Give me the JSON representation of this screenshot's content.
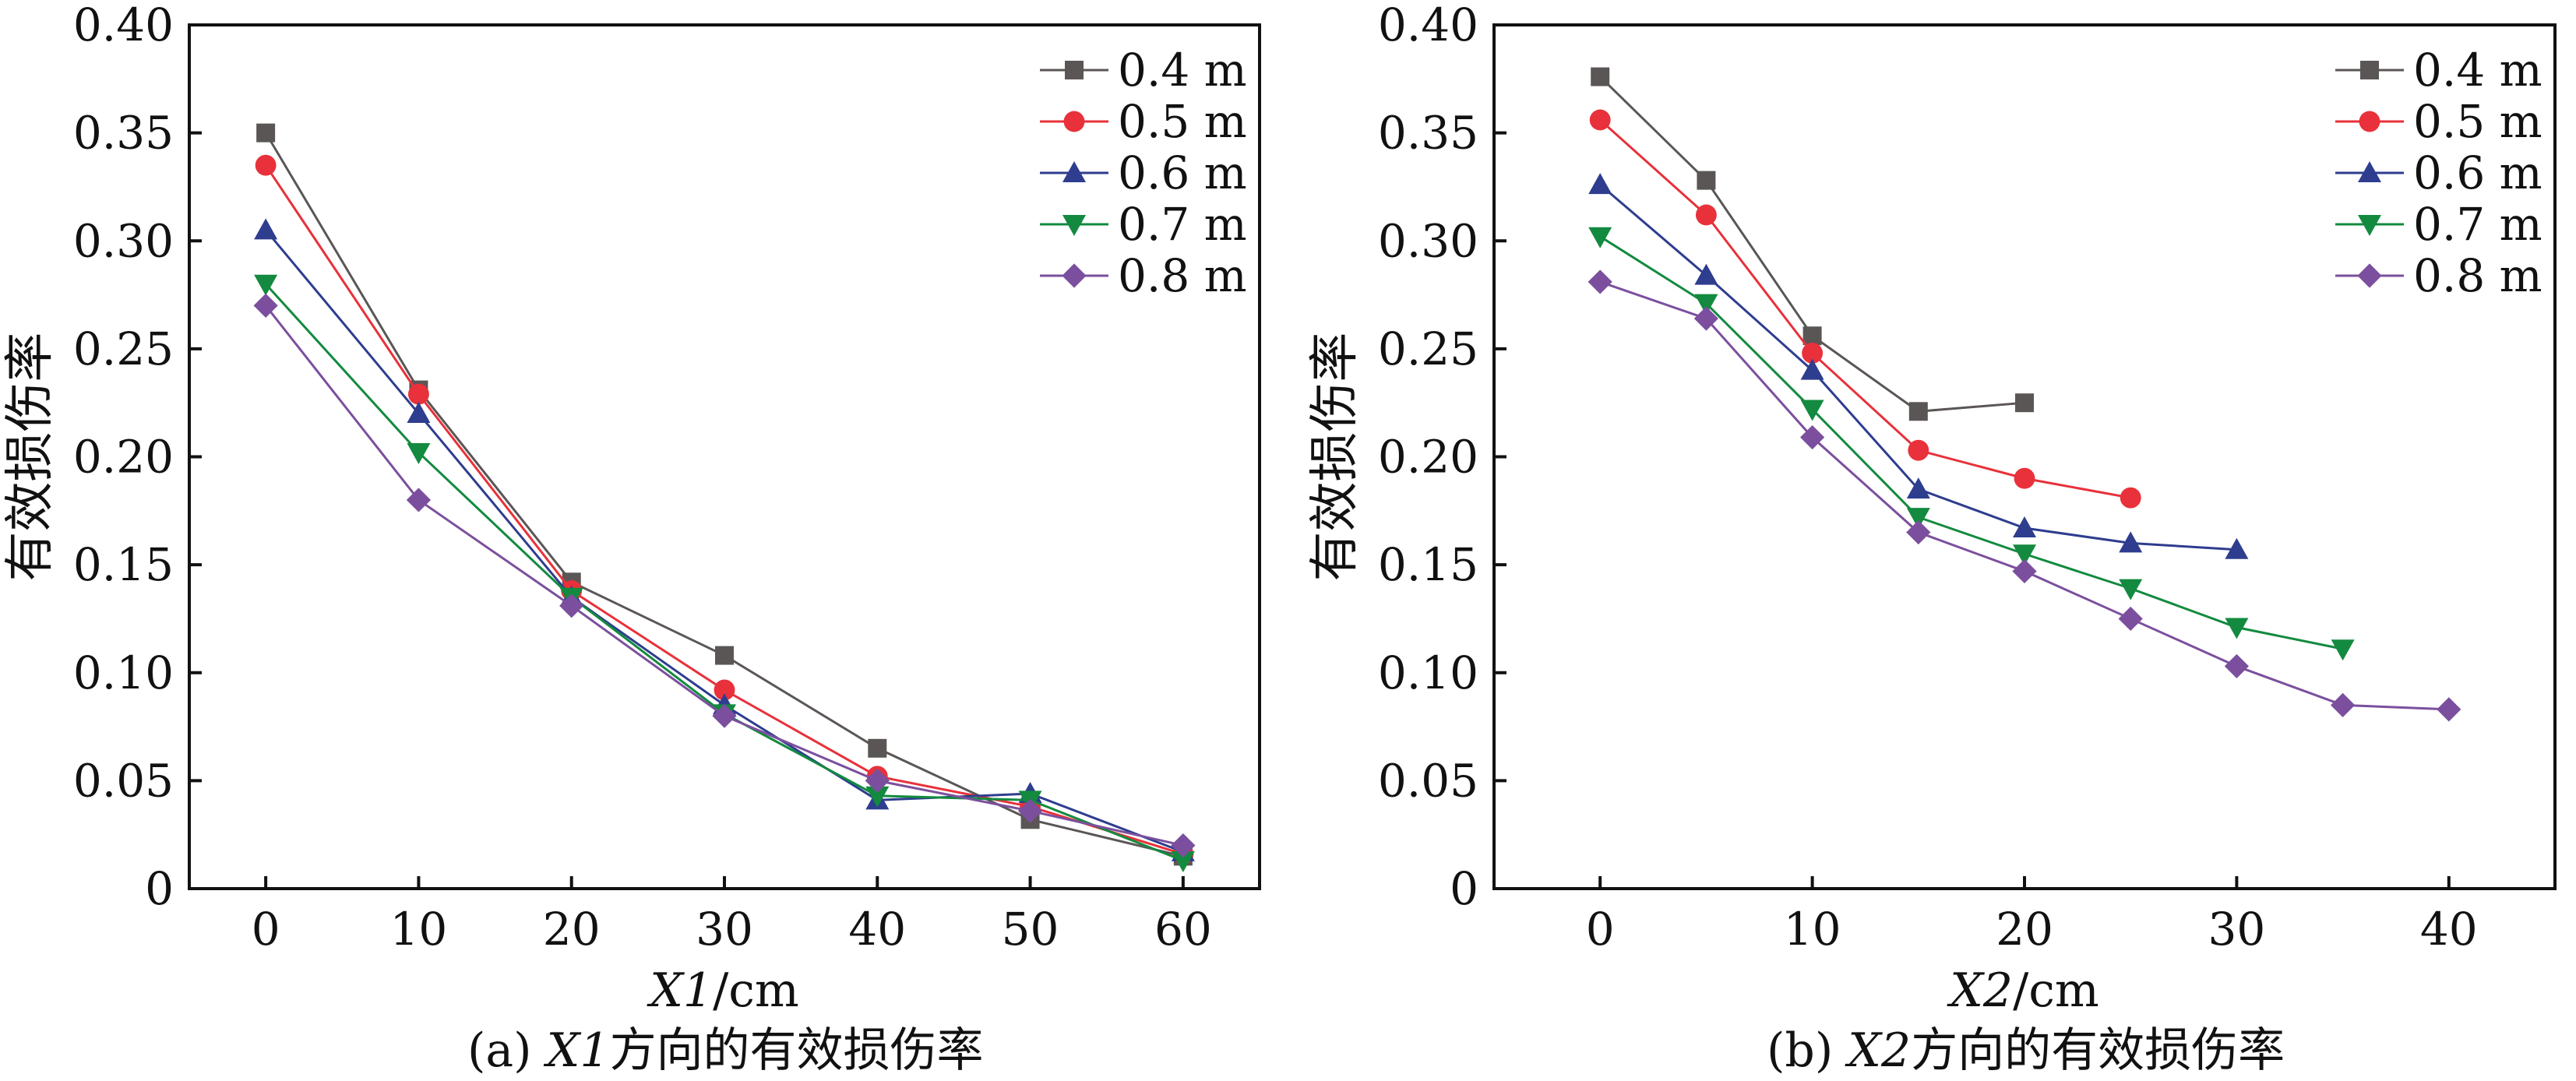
{
  "chart_data": [
    {
      "type": "line",
      "panel": "a",
      "xlabel_var": "X1",
      "xlabel_unit": "/cm",
      "ylabel": "有效损伤率",
      "xlim": [
        -5,
        65
      ],
      "ylim": [
        0,
        0.4
      ],
      "xticks": [
        0,
        10,
        20,
        30,
        40,
        50,
        60
      ],
      "yticks": [
        0,
        0.05,
        0.1,
        0.15,
        0.2,
        0.25,
        0.3,
        0.35,
        0.4
      ],
      "ytick_labels": [
        "0",
        "0.05",
        "0.10",
        "0.15",
        "0.20",
        "0.25",
        "0.30",
        "0.35",
        "0.40"
      ],
      "legend_position": "top-right",
      "caption_prefix": "(a) ",
      "caption_var": "X1",
      "caption_suffix": "方向的有效损伤率",
      "series": [
        {
          "name": "0.4 m",
          "color": "#5b5656",
          "marker": "square",
          "x": [
            0,
            10,
            20,
            30,
            40,
            50,
            60
          ],
          "values": [
            0.35,
            0.231,
            0.142,
            0.108,
            0.065,
            0.032,
            0.015
          ]
        },
        {
          "name": "0.5 m",
          "color": "#e8313a",
          "marker": "circle",
          "x": [
            0,
            10,
            20,
            30,
            40,
            50,
            60
          ],
          "values": [
            0.335,
            0.229,
            0.138,
            0.092,
            0.052,
            0.038,
            0.016
          ]
        },
        {
          "name": "0.6 m",
          "color": "#2e3d8e",
          "marker": "triangle-up",
          "x": [
            0,
            10,
            20,
            30,
            40,
            50,
            60
          ],
          "values": [
            0.305,
            0.22,
            0.135,
            0.085,
            0.041,
            0.044,
            0.017
          ]
        },
        {
          "name": "0.7 m",
          "color": "#138a3f",
          "marker": "triangle-down",
          "x": [
            0,
            10,
            20,
            30,
            40,
            50,
            60
          ],
          "values": [
            0.28,
            0.202,
            0.135,
            0.081,
            0.043,
            0.041,
            0.013
          ]
        },
        {
          "name": "0.8 m",
          "color": "#7b4f9e",
          "marker": "diamond",
          "x": [
            0,
            10,
            20,
            30,
            40,
            50,
            60
          ],
          "values": [
            0.27,
            0.18,
            0.131,
            0.08,
            0.05,
            0.036,
            0.02
          ]
        }
      ]
    },
    {
      "type": "line",
      "panel": "b",
      "xlabel_var": "X2",
      "xlabel_unit": "/cm",
      "ylabel": "有效损伤率",
      "xlim": [
        -5,
        45
      ],
      "ylim": [
        0,
        0.4
      ],
      "xticks": [
        0,
        10,
        20,
        30,
        40
      ],
      "yticks": [
        0,
        0.05,
        0.1,
        0.15,
        0.2,
        0.25,
        0.3,
        0.35,
        0.4
      ],
      "ytick_labels": [
        "0",
        "0.05",
        "0.10",
        "0.15",
        "0.20",
        "0.25",
        "0.30",
        "0.35",
        "0.40"
      ],
      "legend_position": "top-right",
      "caption_prefix": "(b) ",
      "caption_var": "X2",
      "caption_suffix": "方向的有效损伤率",
      "series": [
        {
          "name": "0.4 m",
          "color": "#5b5656",
          "marker": "square",
          "x": [
            0,
            5,
            10,
            15,
            20
          ],
          "values": [
            0.376,
            0.328,
            0.256,
            0.221,
            0.225
          ]
        },
        {
          "name": "0.5 m",
          "color": "#e8313a",
          "marker": "circle",
          "x": [
            0,
            5,
            10,
            15,
            20,
            25
          ],
          "values": [
            0.356,
            0.312,
            0.248,
            0.203,
            0.19,
            0.181
          ]
        },
        {
          "name": "0.6 m",
          "color": "#2e3d8e",
          "marker": "triangle-up",
          "x": [
            0,
            5,
            10,
            15,
            20,
            25,
            30
          ],
          "values": [
            0.326,
            0.284,
            0.24,
            0.185,
            0.167,
            0.16,
            0.157
          ]
        },
        {
          "name": "0.7 m",
          "color": "#138a3f",
          "marker": "triangle-down",
          "x": [
            0,
            5,
            10,
            15,
            20,
            25,
            30,
            35
          ],
          "values": [
            0.302,
            0.271,
            0.222,
            0.172,
            0.155,
            0.139,
            0.121,
            0.111
          ]
        },
        {
          "name": "0.8 m",
          "color": "#7b4f9e",
          "marker": "diamond",
          "x": [
            0,
            5,
            10,
            15,
            20,
            25,
            30,
            35,
            40
          ],
          "values": [
            0.281,
            0.264,
            0.209,
            0.165,
            0.147,
            0.125,
            0.103,
            0.085,
            0.083
          ]
        }
      ]
    }
  ]
}
